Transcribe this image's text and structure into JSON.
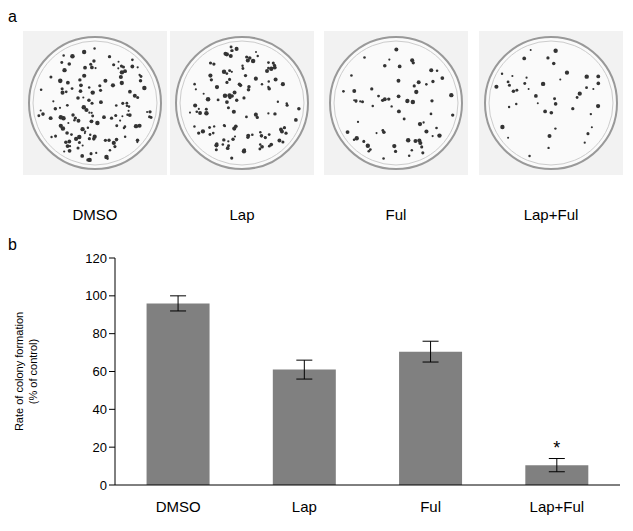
{
  "panel_a": {
    "label": "a",
    "dishes": [
      "DMSO",
      "Lap",
      "Ful",
      "Lap+Ful"
    ]
  },
  "chart_data": {
    "type": "bar",
    "panel_label": "b",
    "y_label": "Rate of colony formation (% of control)",
    "categories": [
      "DMSO",
      "Lap",
      "Ful",
      "Lap+Ful"
    ],
    "values": [
      96,
      61,
      70.5,
      10.5
    ],
    "error": [
      4,
      5,
      5.5,
      3.5
    ],
    "color": "#808080",
    "ylim": [
      0,
      120
    ],
    "yticks": [
      0,
      20,
      40,
      60,
      80,
      100,
      120
    ],
    "grid": false,
    "annotations": [
      {
        "category": "Lap+Ful",
        "text": "*"
      }
    ]
  }
}
